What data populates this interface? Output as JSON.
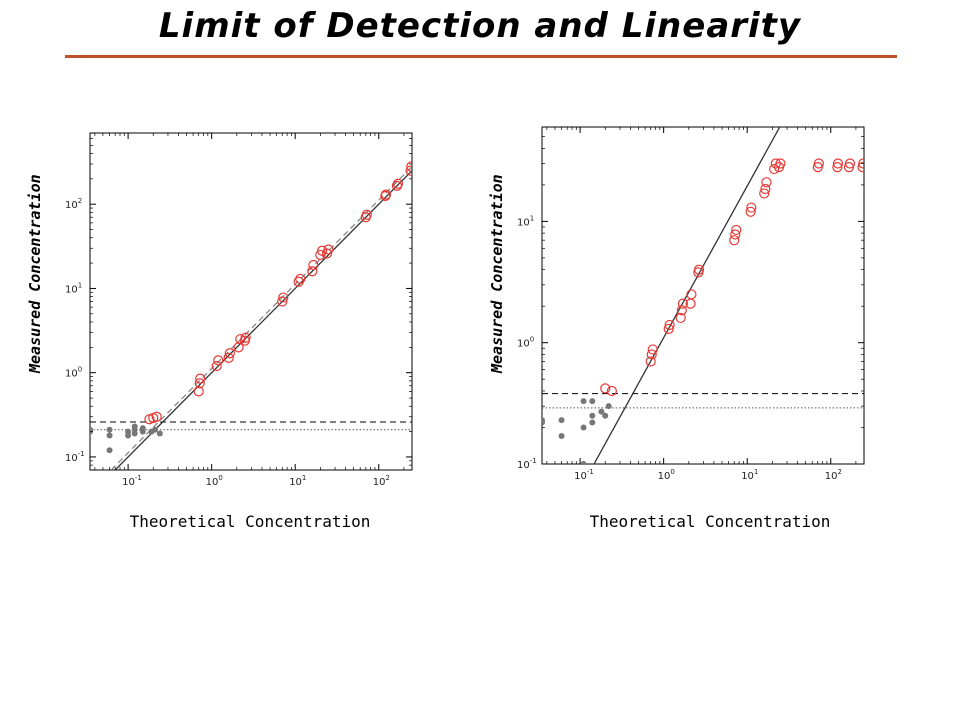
{
  "slide": {
    "title": "Limit of Detection and Linearity",
    "rule_color": "#c0502a"
  },
  "chart_data": [
    {
      "type": "scatter",
      "xlabel": "Theoretical Concentration",
      "ylabel": "Measured Concentration",
      "xscale": "log",
      "yscale": "log",
      "xlim": [
        0.035,
        250
      ],
      "ylim": [
        0.07,
        700
      ],
      "xticks": [
        0.1,
        1,
        10,
        100
      ],
      "yticks": [
        0.1,
        1,
        10,
        100
      ],
      "xtick_labels": [
        {
          "base": "10",
          "exp": "-1"
        },
        {
          "base": "10",
          "exp": "0"
        },
        {
          "base": "10",
          "exp": "1"
        },
        {
          "base": "10",
          "exp": "2"
        }
      ],
      "ytick_labels": [
        {
          "base": "10",
          "exp": "-1"
        },
        {
          "base": "10",
          "exp": "0"
        },
        {
          "base": "10",
          "exp": "1"
        },
        {
          "base": "10",
          "exp": "2"
        }
      ],
      "fit_line": {
        "slope": 1.0,
        "intercept_at_1": 1.0,
        "color": "#333333"
      },
      "dashed_fit_line": {
        "slope": 1.0,
        "intercept_at_1": 1.12,
        "color": "#888888"
      },
      "lod_dashed": 0.26,
      "lob_dotted": 0.21,
      "series": [
        {
          "marker": "filled-circle",
          "color": "#777777",
          "points": [
            [
              0.035,
              0.21
            ],
            [
              0.035,
              0.2
            ],
            [
              0.06,
              0.21
            ],
            [
              0.06,
              0.18
            ],
            [
              0.06,
              0.12
            ],
            [
              0.1,
              0.2
            ],
            [
              0.1,
              0.18
            ],
            [
              0.12,
              0.21
            ],
            [
              0.12,
              0.19
            ],
            [
              0.12,
              0.23
            ],
            [
              0.15,
              0.22
            ],
            [
              0.15,
              0.2
            ],
            [
              0.19,
              0.2
            ],
            [
              0.21,
              0.21
            ],
            [
              0.24,
              0.19
            ]
          ]
        },
        {
          "marker": "open-circle",
          "color": "#e53935",
          "points": [
            [
              0.18,
              0.28
            ],
            [
              0.2,
              0.29
            ],
            [
              0.22,
              0.3
            ],
            [
              0.7,
              0.6
            ],
            [
              0.72,
              0.75
            ],
            [
              0.73,
              0.85
            ],
            [
              1.15,
              1.2
            ],
            [
              1.2,
              1.4
            ],
            [
              1.6,
              1.5
            ],
            [
              1.65,
              1.7
            ],
            [
              2.1,
              2.0
            ],
            [
              2.2,
              2.5
            ],
            [
              2.5,
              2.4
            ],
            [
              2.55,
              2.6
            ],
            [
              7,
              7
            ],
            [
              7.2,
              7.8
            ],
            [
              11,
              12
            ],
            [
              11.5,
              13
            ],
            [
              16,
              16
            ],
            [
              16.5,
              19
            ],
            [
              20,
              25
            ],
            [
              21,
              28
            ],
            [
              24,
              26
            ],
            [
              25,
              29
            ],
            [
              70,
              70
            ],
            [
              72,
              75
            ],
            [
              120,
              125
            ],
            [
              122,
              130
            ],
            [
              165,
              165
            ],
            [
              170,
              175
            ],
            [
              240,
              250
            ],
            [
              245,
              280
            ]
          ]
        }
      ]
    },
    {
      "type": "scatter",
      "xlabel": "Theoretical Concentration",
      "ylabel": "Measured Concentration",
      "xscale": "log",
      "yscale": "log",
      "xlim": [
        0.035,
        250
      ],
      "ylim": [
        0.1,
        60
      ],
      "xticks": [
        0.1,
        1,
        10,
        100
      ],
      "yticks": [
        0.1,
        1,
        10
      ],
      "xtick_labels": [
        {
          "base": "10",
          "exp": "-1"
        },
        {
          "base": "10",
          "exp": "0"
        },
        {
          "base": "10",
          "exp": "1"
        },
        {
          "base": "10",
          "exp": "2"
        }
      ],
      "ytick_labels": [
        {
          "base": "10",
          "exp": "-1"
        },
        {
          "base": "10",
          "exp": "0"
        },
        {
          "base": "10",
          "exp": "1"
        }
      ],
      "fit_line": {
        "slope": 1.25,
        "intercept_at_1": 1.1,
        "color": "#333333"
      },
      "lod_dashed": 0.38,
      "lob_dotted": 0.29,
      "series": [
        {
          "marker": "filled-circle",
          "color": "#777777",
          "points": [
            [
              0.035,
              0.23
            ],
            [
              0.035,
              0.22
            ],
            [
              0.06,
              0.23
            ],
            [
              0.06,
              0.17
            ],
            [
              0.11,
              0.1
            ],
            [
              0.11,
              0.2
            ],
            [
              0.11,
              0.33
            ],
            [
              0.14,
              0.33
            ],
            [
              0.14,
              0.22
            ],
            [
              0.14,
              0.25
            ],
            [
              0.18,
              0.27
            ],
            [
              0.2,
              0.25
            ],
            [
              0.22,
              0.3
            ]
          ]
        },
        {
          "marker": "open-circle",
          "color": "#e53935",
          "points": [
            [
              0.2,
              0.42
            ],
            [
              0.24,
              0.4
            ],
            [
              0.7,
              0.7
            ],
            [
              0.72,
              0.8
            ],
            [
              0.74,
              0.88
            ],
            [
              1.15,
              1.3
            ],
            [
              1.18,
              1.4
            ],
            [
              1.6,
              1.6
            ],
            [
              1.65,
              1.85
            ],
            [
              1.7,
              2.1
            ],
            [
              2.1,
              2.1
            ],
            [
              2.15,
              2.5
            ],
            [
              2.6,
              3.8
            ],
            [
              2.65,
              4.0
            ],
            [
              7,
              7
            ],
            [
              7.2,
              7.8
            ],
            [
              7.4,
              8.5
            ],
            [
              11,
              12
            ],
            [
              11.2,
              13
            ],
            [
              16,
              17
            ],
            [
              16.5,
              18.5
            ],
            [
              17,
              21
            ],
            [
              21,
              27
            ],
            [
              22,
              30
            ],
            [
              24,
              28
            ],
            [
              25,
              30
            ],
            [
              70,
              28
            ],
            [
              72,
              30
            ],
            [
              120,
              28
            ],
            [
              122,
              30
            ],
            [
              165,
              28
            ],
            [
              170,
              30
            ],
            [
              240,
              28
            ],
            [
              245,
              30
            ]
          ]
        }
      ]
    }
  ]
}
